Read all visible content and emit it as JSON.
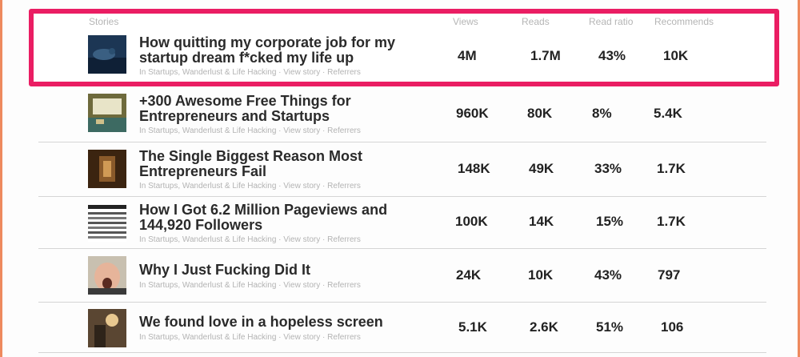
{
  "header": {
    "stories": "Stories",
    "views": "Views",
    "reads": "Reads",
    "read_ratio": "Read ratio",
    "recommends": "Recommends"
  },
  "meta_common": {
    "publication": "In Startups, Wanderlust & Life Hacking",
    "sep": "·",
    "view_story": "View story",
    "referrers": "Referrers"
  },
  "stories": [
    {
      "title": "How quitting my corporate job for my startup dream f*cked my life up",
      "views": "4M",
      "reads": "1.7M",
      "ratio": "43%",
      "recommends": "10K",
      "thumb_icon": "person-underwater-thumbnail"
    },
    {
      "title": "+300 Awesome Free Things for Entrepreneurs and Startups",
      "views": "960K",
      "reads": "80K",
      "ratio": "8%",
      "recommends": "5.4K",
      "thumb_icon": "desk-laptop-thumbnail"
    },
    {
      "title": "The Single Biggest Reason Most Entrepreneurs Fail",
      "views": "148K",
      "reads": "49K",
      "ratio": "33%",
      "recommends": "1.7K",
      "thumb_icon": "wooden-room-thumbnail"
    },
    {
      "title": "How I Got 6.2 Million Pageviews and 144,920 Followers",
      "views": "100K",
      "reads": "14K",
      "ratio": "15%",
      "recommends": "1.7K",
      "thumb_icon": "stats-table-thumbnail"
    },
    {
      "title": "Why I Just Fucking Did It",
      "views": "24K",
      "reads": "10K",
      "ratio": "43%",
      "recommends": "797",
      "thumb_icon": "shouting-man-thumbnail"
    },
    {
      "title": "We found love in a hopeless screen",
      "views": "5.1K",
      "reads": "2.6K",
      "ratio": "51%",
      "recommends": "106",
      "thumb_icon": "person-sunset-thumbnail"
    }
  ],
  "colors": {
    "highlight": "#ea1d63",
    "side_border": "#ee8a5e"
  }
}
